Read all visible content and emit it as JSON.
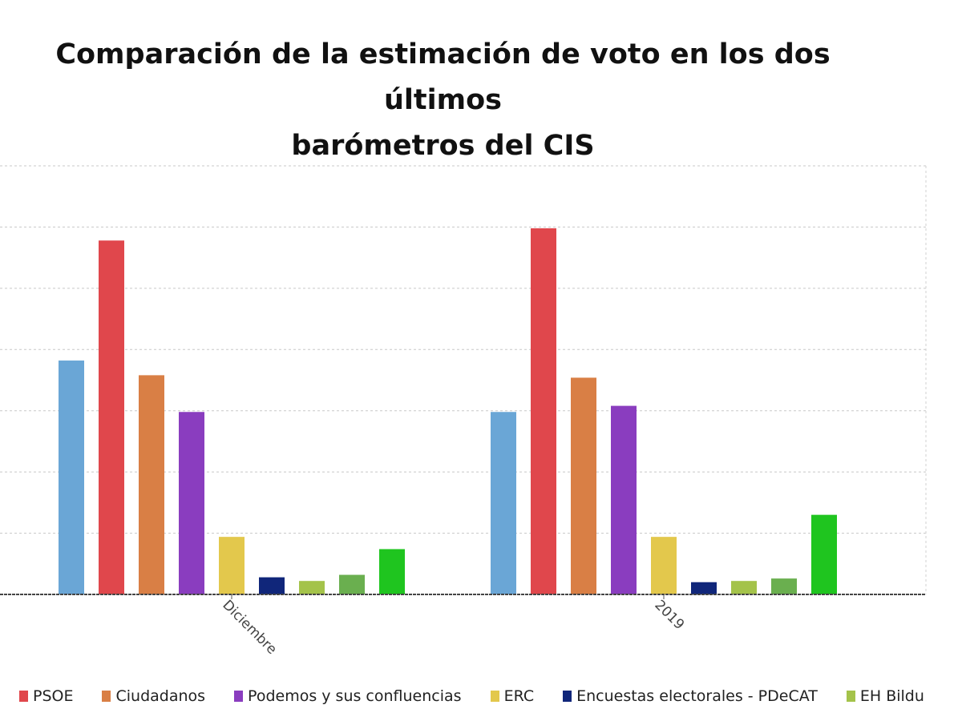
{
  "chart_data": {
    "type": "bar",
    "title": "Comparación de la estimación de voto en los dos últimos barómetros del CIS",
    "title_lines": [
      "Comparación de la estimación de voto en los dos últimos",
      "barómetros del CIS"
    ],
    "categories": [
      "Diciembre",
      "2019"
    ],
    "ylim": [
      0,
      35
    ],
    "y_grid_step": 5,
    "grid": true,
    "legend_position": "bottom",
    "series": [
      {
        "color": "#6aa6d6",
        "values": [
          19.1,
          14.9
        ]
      },
      {
        "name": "PSOE",
        "color": "#e0474c",
        "values": [
          28.9,
          29.9
        ]
      },
      {
        "name": "Ciudadanos",
        "color": "#d97f45",
        "values": [
          17.9,
          17.7
        ]
      },
      {
        "name": "Podemos y sus confluencias",
        "color": "#8a3dbf",
        "values": [
          14.9,
          15.4
        ]
      },
      {
        "name": "ERC",
        "color": "#e3c84c",
        "values": [
          4.7,
          4.7
        ]
      },
      {
        "name": "Encuestas electorales - PDeCAT",
        "color": "#10267a",
        "values": [
          1.4,
          1.0
        ]
      },
      {
        "name": "EH Bildu",
        "color": "#a4c34a",
        "values": [
          1.1,
          1.1
        ]
      },
      {
        "color": "#6aaf4f",
        "values": [
          1.6,
          1.3
        ]
      },
      {
        "color": "#1fc51f",
        "values": [
          3.7,
          6.5
        ]
      }
    ]
  }
}
